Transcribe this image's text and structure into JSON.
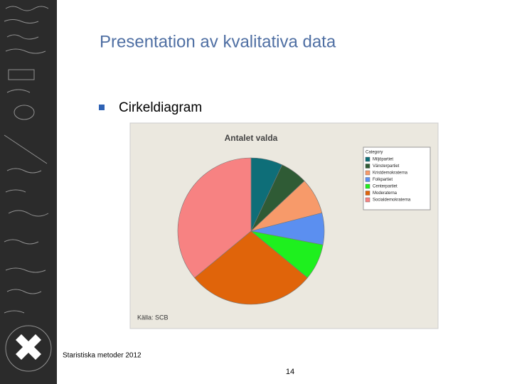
{
  "slide_title": "Presentation av kvalitativa data",
  "bullet": "Cirkeldiagram",
  "footer": "Staristiska metoder 2012",
  "page_number": "14",
  "chart_data": {
    "type": "pie",
    "title": "Antalet valda",
    "source": "Källa: SCB",
    "legend_title": "Category",
    "categories": [
      "Miljöpartiet",
      "Vänsterpartiet",
      "Kristdemokraterna",
      "Folkpartiet",
      "Centerpartiet",
      "Moderaterna",
      "Socialdemokraterna"
    ],
    "values": [
      7,
      6,
      8,
      7,
      8,
      28,
      36
    ],
    "colors": [
      "#0e6e78",
      "#2f5b35",
      "#f79a6a",
      "#5b8ff0",
      "#1ef01e",
      "#e0640a",
      "#f78282"
    ],
    "legend": "top-right"
  }
}
